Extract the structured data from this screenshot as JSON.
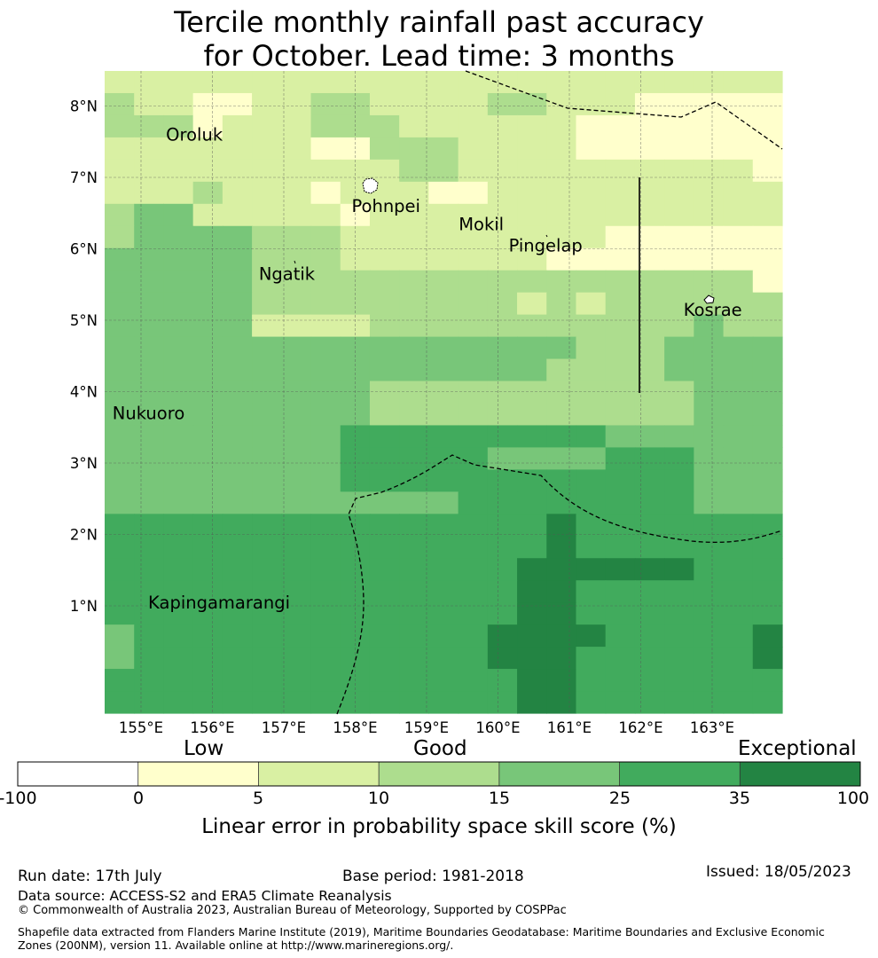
{
  "title_line1": "Tercile monthly rainfall past accuracy",
  "title_line2": "for October. Lead time: 3 months",
  "map": {
    "lon_labels": [
      "155°E",
      "156°E",
      "157°E",
      "158°E",
      "159°E",
      "160°E",
      "161°E",
      "162°E",
      "163°E"
    ],
    "lat_labels": [
      "8°N",
      "7°N",
      "6°N",
      "5°N",
      "4°N",
      "3°N",
      "2°N",
      "1°N"
    ],
    "places": [
      {
        "name": "Oroluk",
        "lon": 155.35,
        "lat": 7.6
      },
      {
        "name": "Pohnpei",
        "lon": 157.95,
        "lat": 6.6
      },
      {
        "name": "Mokil",
        "lon": 159.45,
        "lat": 6.35
      },
      {
        "name": "Pingelap",
        "lon": 160.15,
        "lat": 6.05
      },
      {
        "name": "Ngatik",
        "lon": 156.65,
        "lat": 5.65
      },
      {
        "name": "Kosrae",
        "lon": 162.6,
        "lat": 5.15
      },
      {
        "name": "Nukuoro",
        "lon": 154.6,
        "lat": 3.7
      },
      {
        "name": "Kapingamarangi",
        "lon": 155.1,
        "lat": 1.05
      }
    ],
    "skill_category_grid_rows_north_to_south": [
      "22222222222222222222222",
      "32211223322223322211111",
      "33312223332222221111111",
      "22222221133322221111111",
      "22222222223322222222221",
      "22232221222112222222222",
      "34422222122222222222222",
      "34444333222222222111111",
      "44444333222222211111111",
      "44444333333333333333331",
      "44444333333333232333333",
      "44444222233333333333433",
      "44444444444444443334444",
      "44444444444444433334444",
      "44444444433333333333444",
      "44444444433333333333444",
      "44444444555555555444444",
      "44444444555554444555444",
      "44444444555555555555444",
      "44444444444455555555444",
      "55555555555555565555555",
      "55555555555555565555555",
      "55555555555555666666555",
      "55555555555555665555555",
      "55555555555555665555555",
      "45555555555556666555556",
      "45555555555556665555556",
      "55555555555555665555555",
      "55555555555555665555555"
    ]
  },
  "colorbar": {
    "category_labels": [
      "Low",
      "Good",
      "Exceptional"
    ],
    "ticks": [
      "-100",
      "0",
      "5",
      "10",
      "15",
      "25",
      "35",
      "100"
    ],
    "colors": [
      "#ffffff",
      "#ffffcc",
      "#d9f0a3",
      "#addd8e",
      "#78c679",
      "#41ab5d",
      "#238443"
    ],
    "label": "Linear error in probability space skill score (%)"
  },
  "footer": {
    "run_date": "Run date: 17th July",
    "base_period": "Base period: 1981-2018",
    "issued": "Issued: 18/05/2023",
    "data_source": "Data source: ACCESS-S2 and ERA5 Climate Reanalysis",
    "copyright": "© Commonwealth of Australia 2023, Australian Bureau of Meteorology, Supported by COSPPac",
    "shapefile": "Shapefile data extracted from Flanders Marine Institute (2019), Maritime Boundaries Geodatabase: Maritime Boundaries and Exclusive Economic Zones (200NM), version 11. Available online at http://www.marineregions.org/."
  }
}
